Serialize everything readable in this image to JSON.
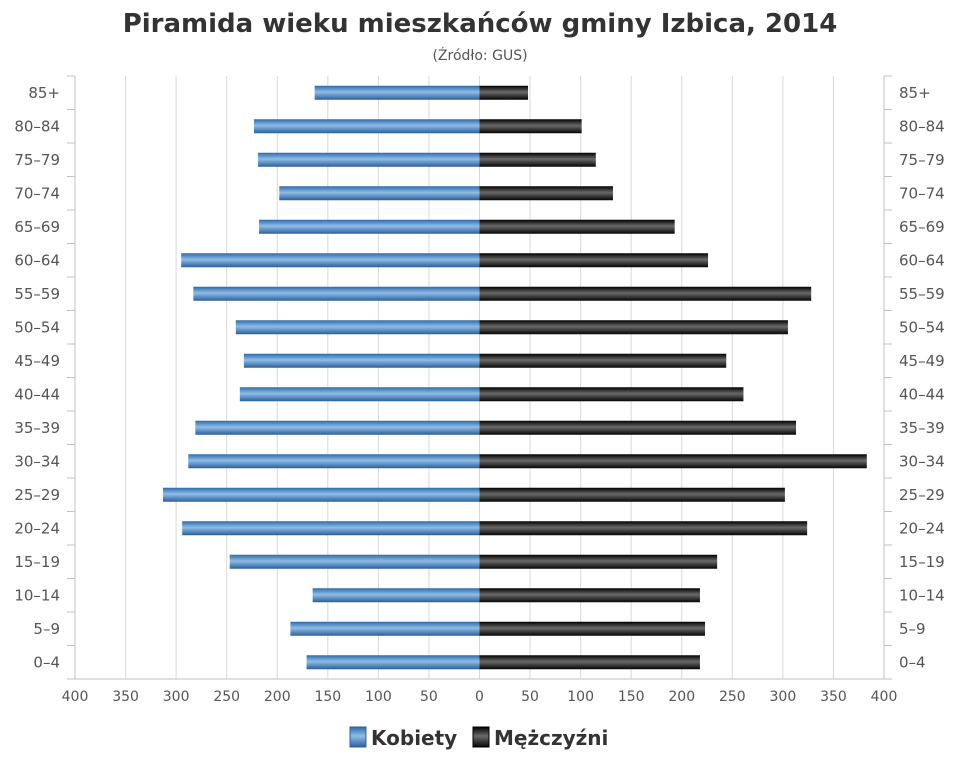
{
  "chart_data": {
    "type": "bar",
    "orientation": "horizontal",
    "title": "Piramida wieku mieszkańców gminy Izbica, 2014",
    "subtitle": "(Źródło: GUS)",
    "categories": [
      "0–4",
      "5–9",
      "10–14",
      "15–19",
      "20–24",
      "25–29",
      "30–34",
      "35–39",
      "40–44",
      "45–49",
      "50–54",
      "55–59",
      "60–64",
      "65–69",
      "70–74",
      "75–79",
      "80–84",
      "85+"
    ],
    "series": [
      {
        "name": "Kobiety",
        "side": "left",
        "color": "#4a86c6",
        "values": [
          171,
          187,
          165,
          247,
          294,
          313,
          288,
          281,
          237,
          233,
          241,
          283,
          295,
          218,
          198,
          219,
          223,
          163
        ]
      },
      {
        "name": "Mężczyźni",
        "side": "right",
        "color": "#1e1e1e",
        "values": [
          218,
          223,
          218,
          235,
          324,
          302,
          383,
          313,
          261,
          244,
          305,
          328,
          226,
          193,
          132,
          115,
          101,
          48
        ]
      }
    ],
    "xlim": [
      -400,
      400
    ],
    "x_ticks": [
      "400",
      "350",
      "300",
      "250",
      "200",
      "150",
      "100",
      "50",
      "0",
      "50",
      "100",
      "150",
      "200",
      "250",
      "300",
      "350",
      "400"
    ],
    "grid": true,
    "legend_position": "bottom-center"
  }
}
